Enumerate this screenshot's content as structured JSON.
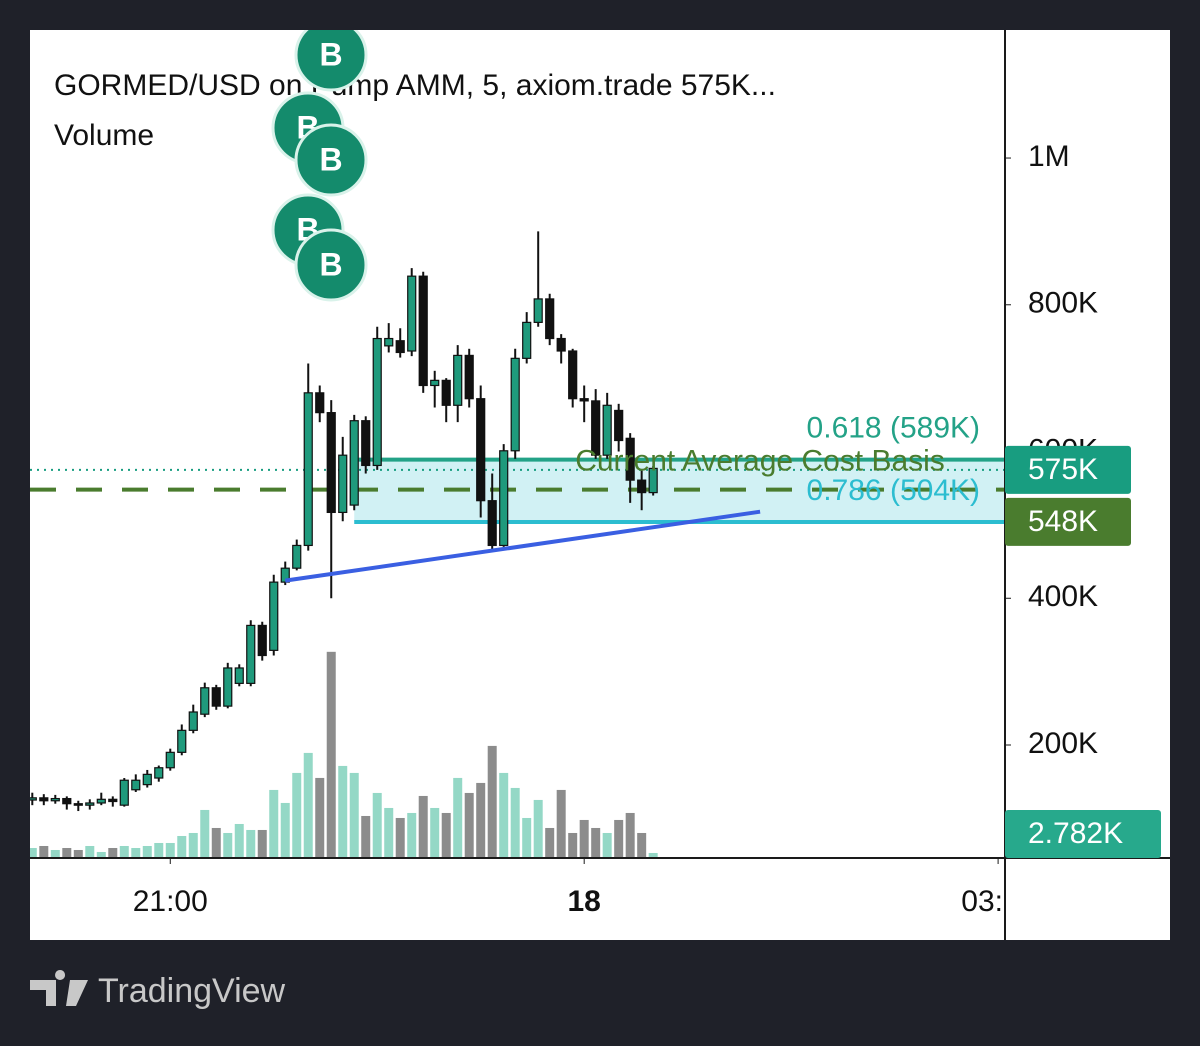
{
  "chart_data": {
    "type": "candlestick",
    "title": "GORMED/USD on Pump AMM, 5, axiom.trade  575K...",
    "subtitle": "Volume",
    "xlim": [
      -0.2,
      84.6
    ],
    "xticks": [
      {
        "value": 12,
        "label": "21:00"
      },
      {
        "value": 48,
        "label": "18"
      },
      {
        "value": 84,
        "label": "03:"
      }
    ],
    "ylim": [
      46000,
      1174500
    ],
    "yticks": [
      {
        "value": 200000,
        "label": "200K"
      },
      {
        "value": 400000,
        "label": "400K"
      },
      {
        "value": 600000,
        "label": "600K"
      },
      {
        "value": 800000,
        "label": "800K"
      },
      {
        "value": 1000000,
        "label": "1M"
      }
    ],
    "up_color": "#1f9a7c",
    "down_color": "#111111",
    "open": [
      125000,
      128000,
      124000,
      127000,
      120000,
      118000,
      121000,
      126000,
      118000,
      139000,
      146000,
      155000,
      169000,
      190000,
      220000,
      242000,
      278000,
      253000,
      284000,
      284000,
      363000,
      329000,
      422000,
      441000,
      472000,
      680000,
      653000,
      517000,
      527000,
      642000,
      581000,
      744000,
      751000,
      737000,
      839000,
      690000,
      697000,
      663000,
      731000,
      672000,
      533000,
      472000,
      601000,
      727000,
      776000,
      808000,
      754000,
      737000,
      672000,
      669000,
      595000,
      656000,
      618000,
      561000,
      544000
    ],
    "high": [
      135000,
      133000,
      132000,
      130000,
      124000,
      126000,
      135000,
      130000,
      155000,
      160000,
      166000,
      172000,
      195000,
      228000,
      255000,
      285000,
      282000,
      312000,
      310000,
      370000,
      368000,
      432000,
      450000,
      480000,
      720000,
      690000,
      670000,
      620000,
      650000,
      648000,
      770000,
      775000,
      768000,
      850000,
      845000,
      710000,
      700000,
      745000,
      740000,
      690000,
      570000,
      610000,
      740000,
      790000,
      900000,
      815000,
      760000,
      740000,
      690000,
      685000,
      680000,
      665000,
      625000,
      574000,
      580000
    ],
    "low": [
      118000,
      118000,
      120000,
      112000,
      110000,
      112000,
      118000,
      116000,
      116000,
      136000,
      142000,
      150000,
      165000,
      186000,
      216000,
      238000,
      248000,
      250000,
      280000,
      280000,
      315000,
      322000,
      418000,
      438000,
      465000,
      640000,
      400000,
      505000,
      520000,
      570000,
      575000,
      735000,
      728000,
      730000,
      680000,
      660000,
      640000,
      640000,
      660000,
      510000,
      465000,
      470000,
      590000,
      720000,
      770000,
      745000,
      720000,
      660000,
      640000,
      590000,
      590000,
      600000,
      530000,
      520000,
      540000
    ],
    "close": [
      128000,
      124000,
      127000,
      120000,
      118000,
      121000,
      126000,
      123000,
      152000,
      152000,
      160000,
      169000,
      190000,
      220000,
      245000,
      278000,
      253000,
      305000,
      305000,
      363000,
      322000,
      422000,
      441000,
      472000,
      680000,
      653000,
      517000,
      595000,
      642000,
      581000,
      754000,
      754000,
      735000,
      839000,
      690000,
      697000,
      663000,
      731000,
      672000,
      533000,
      472000,
      601000,
      727000,
      776000,
      808000,
      754000,
      737000,
      672000,
      669000,
      595000,
      663000,
      615000,
      561000,
      544000,
      577000
    ],
    "volume": [
      5560,
      6670,
      4450,
      5560,
      4450,
      6670,
      3340,
      5560,
      6670,
      5560,
      6670,
      8340,
      8340,
      12230,
      13900,
      26690,
      16680,
      13900,
      18900,
      15570,
      15570,
      37810,
      30580,
      47260,
      58380,
      44480,
      114540,
      51150,
      47260,
      23350,
      36140,
      27800,
      22240,
      25020,
      34470,
      27800,
      25020,
      44480,
      36140,
      41700,
      62270,
      47260,
      38920,
      22240,
      32250,
      16680,
      37810,
      13900,
      21130,
      16680,
      13900,
      21130,
      25020,
      13900,
      2782
    ],
    "volume_ylim": [
      0,
      460000
    ],
    "volume_up_color": "#94d8c6",
    "volume_down_color": "#8c8c8c",
    "volume_label": {
      "value": 2782,
      "label": "2.782K",
      "color": "#27a98c"
    },
    "fib_zone": {
      "start": 28,
      "fill": "#c9eef2",
      "levels": [
        {
          "value": 589000,
          "label": "0.618 (589K)",
          "color": "#23a287"
        },
        {
          "value": 504000,
          "label": "0.786 (504K)",
          "color": "#2cbdd0"
        }
      ]
    },
    "current_price": {
      "value": 575000,
      "label": "575K",
      "color": "#189d80"
    },
    "cost_basis": {
      "value": 548000,
      "label": "548K",
      "name": "Current Average Cost Basis",
      "color": "#4a7c2e"
    },
    "trendline": {
      "x": [
        22,
        63.3
      ],
      "values": [
        424000,
        518000
      ],
      "color": "#3a5fe2"
    },
    "buy_markers": [
      "B",
      "B",
      "B",
      "B",
      "B"
    ]
  },
  "footer": "TradingView"
}
